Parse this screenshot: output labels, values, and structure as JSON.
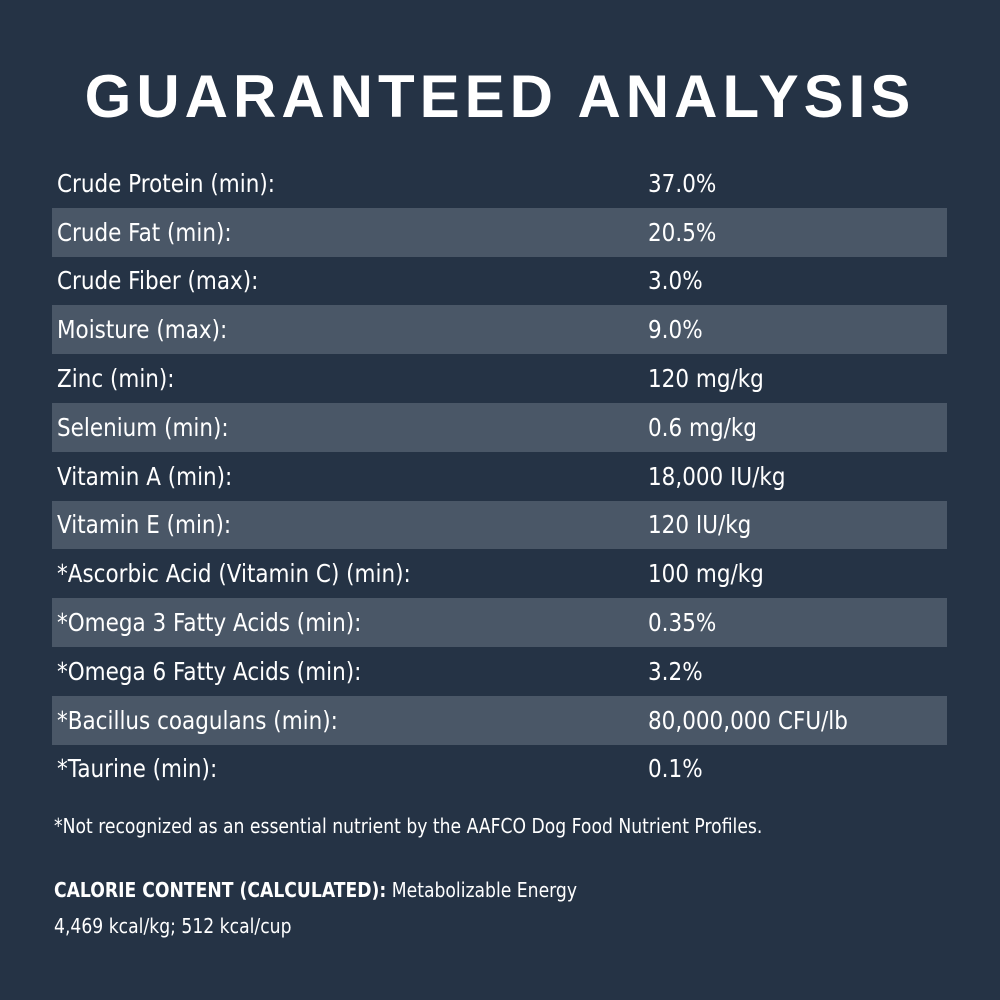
{
  "header": {
    "title": "GUARANTEED ANALYSIS"
  },
  "table": {
    "rows": [
      [
        "Crude Protein (min):",
        "37.0%"
      ],
      [
        "Crude Fat (min):",
        "20.5%"
      ],
      [
        "Crude Fiber (max):",
        "3.0%"
      ],
      [
        "Moisture (max):",
        "9.0%"
      ],
      [
        "Zinc (min):",
        "120 mg/kg"
      ],
      [
        "Selenium (min):",
        "0.6 mg/kg"
      ],
      [
        "Vitamin A (min):",
        "18,000 IU/kg"
      ],
      [
        "Vitamin E (min):",
        "120 IU/kg"
      ],
      [
        "*Ascorbic Acid (Vitamin C) (min):",
        "100 mg/kg"
      ],
      [
        "*Omega 3 Fatty Acids (min):",
        "0.35%"
      ],
      [
        "*Omega 6 Fatty Acids (min):",
        "3.2%"
      ],
      [
        "*Bacillus coagulans (min):",
        "80,000,000 CFU/lb"
      ],
      [
        "*Taurine (min):",
        "0.1%"
      ]
    ]
  },
  "footnote": "*Not recognized as an essential nutrient by the AAFCO Dog Food Nutrient Profiles.",
  "calorie": {
    "label": "CALORIE CONTENT (CALCULATED):",
    "text": "Metabolizable Energy",
    "values": "4,469 kcal/kg; 512 kcal/cup"
  }
}
